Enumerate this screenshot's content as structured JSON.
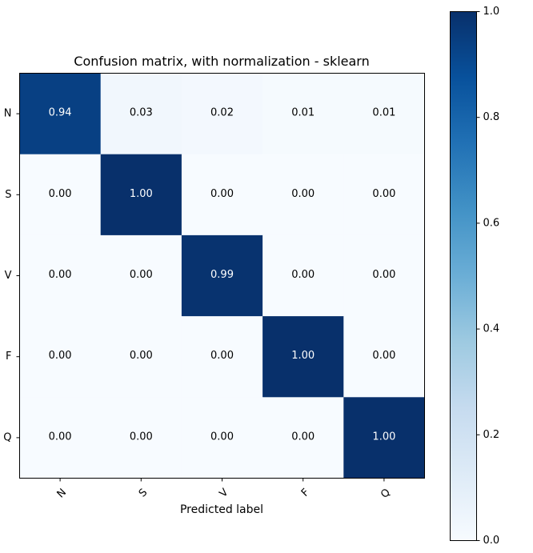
{
  "chart_data": {
    "type": "heatmap",
    "title": "Confusion matrix, with normalization - sklearn",
    "xlabel": "Predicted label",
    "ylabel": "",
    "x_categories": [
      "N",
      "S",
      "V",
      "F",
      "Q"
    ],
    "y_categories": [
      "N",
      "S",
      "V",
      "F",
      "Q"
    ],
    "values": [
      [
        0.94,
        0.03,
        0.02,
        0.01,
        0.01
      ],
      [
        0.0,
        1.0,
        0.0,
        0.0,
        0.0
      ],
      [
        0.0,
        0.0,
        0.99,
        0.0,
        0.0
      ],
      [
        0.0,
        0.0,
        0.0,
        1.0,
        0.0
      ],
      [
        0.0,
        0.0,
        0.0,
        0.0,
        1.0
      ]
    ],
    "value_labels": [
      [
        "0.94",
        "0.03",
        "0.02",
        "0.01",
        "0.01"
      ],
      [
        "0.00",
        "1.00",
        "0.00",
        "0.00",
        "0.00"
      ],
      [
        "0.00",
        "0.00",
        "0.99",
        "0.00",
        "0.00"
      ],
      [
        "0.00",
        "0.00",
        "0.00",
        "1.00",
        "0.00"
      ],
      [
        "0.00",
        "0.00",
        "0.00",
        "0.00",
        "1.00"
      ]
    ],
    "colormap": "Blues",
    "colormap_stops": [
      "#f7fbff",
      "#deebf7",
      "#c6dbef",
      "#9ecae1",
      "#6baed6",
      "#4292c6",
      "#2171b5",
      "#08519c",
      "#08306b"
    ],
    "colorbar": {
      "range": [
        0.0,
        1.0
      ],
      "ticks": [
        0.0,
        0.2,
        0.4,
        0.6,
        0.8,
        1.0
      ],
      "tick_labels": [
        "0.0",
        "0.2",
        "0.4",
        "0.6",
        "0.8",
        "1.0"
      ]
    },
    "grid": false,
    "x_tick_rotation": 45
  }
}
